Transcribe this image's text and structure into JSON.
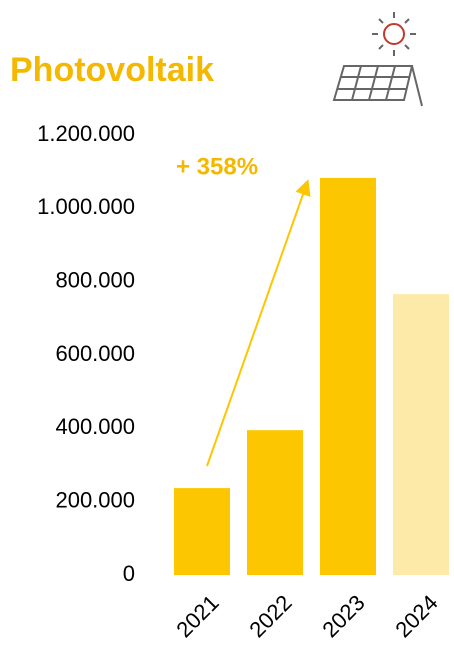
{
  "chart_data": {
    "type": "bar",
    "title": "Photovoltaik",
    "categories": [
      "2021",
      "2022",
      "2023",
      "2024"
    ],
    "values": [
      237000,
      395000,
      1083000,
      766000
    ],
    "colors": [
      "#fcc600",
      "#fcc600",
      "#fcc600",
      "#fdeaa8"
    ],
    "ylim": [
      0,
      1200000
    ],
    "yticks": [
      0,
      {
        "value": 200000,
        "label": "200.000"
      },
      {
        "value": 400000,
        "label": "400.000"
      },
      {
        "value": 600000,
        "label": "600.000"
      },
      {
        "value": 800000,
        "label": "800.000"
      },
      {
        "value": 1000000,
        "label": "1.000.000"
      },
      {
        "value": 1200000,
        "label": "1.200.000"
      }
    ],
    "annotation": "+ 358%"
  }
}
